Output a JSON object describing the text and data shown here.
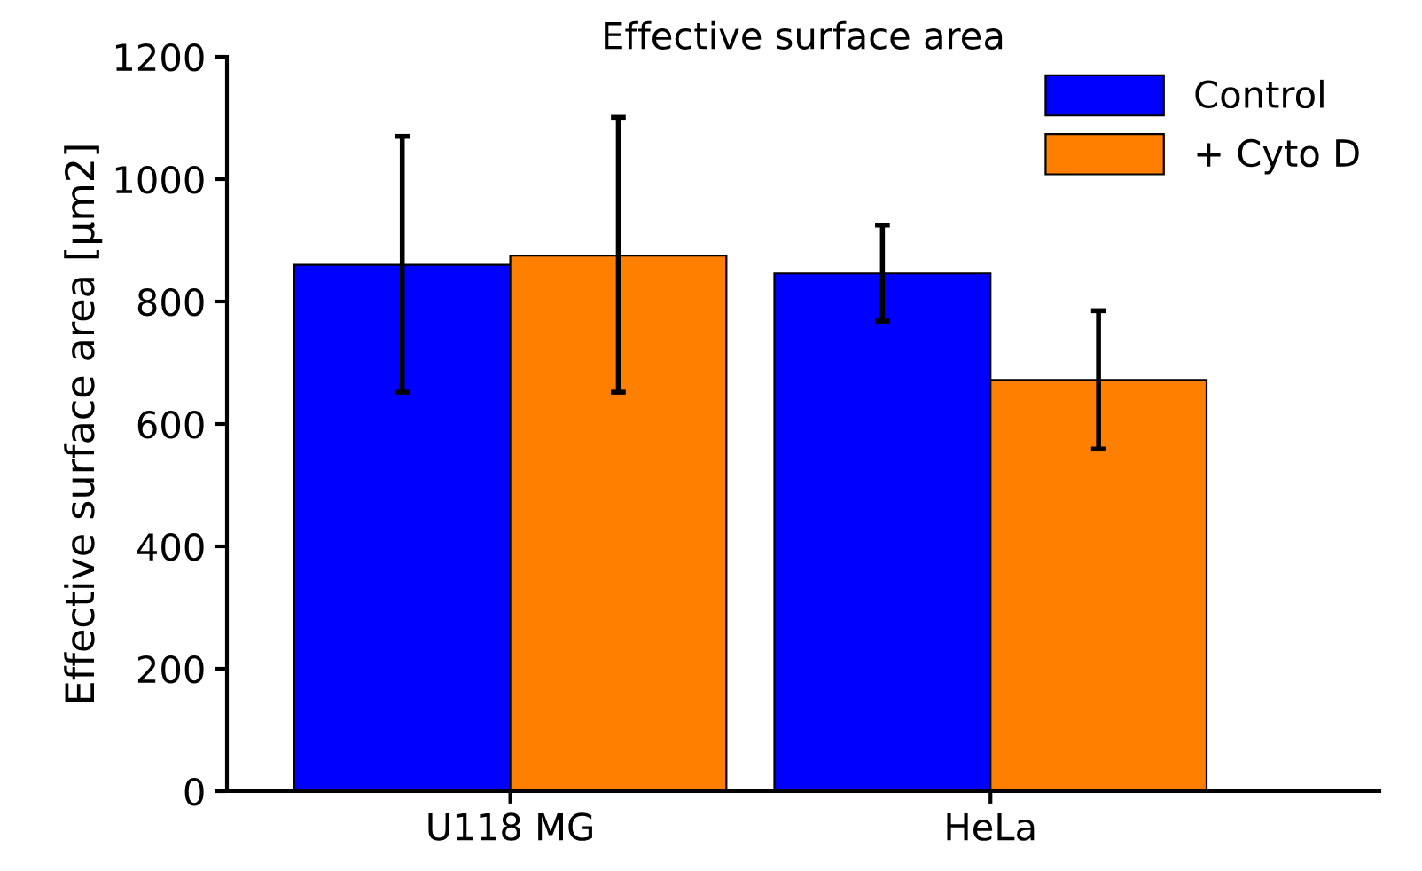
{
  "chart_data": {
    "type": "bar",
    "title": "Effective surface area",
    "ylabel": "Effective surface area [µm2]",
    "categories": [
      "U118 MG",
      "HeLa"
    ],
    "series": [
      {
        "name": "Control",
        "color": "#0000ff",
        "values": [
          860,
          846
        ],
        "errors": [
          [
            652,
            1070
          ],
          [
            768,
            925
          ]
        ]
      },
      {
        "name": "+ Cyto D",
        "color": "#ff8000",
        "values": [
          875,
          672
        ],
        "errors": [
          [
            652,
            1101
          ],
          [
            559,
            785
          ]
        ]
      }
    ],
    "ylim": [
      0,
      1200
    ],
    "yticks": [
      0,
      200,
      400,
      600,
      800,
      1000,
      1200
    ],
    "grid": false,
    "legend": "top right"
  }
}
